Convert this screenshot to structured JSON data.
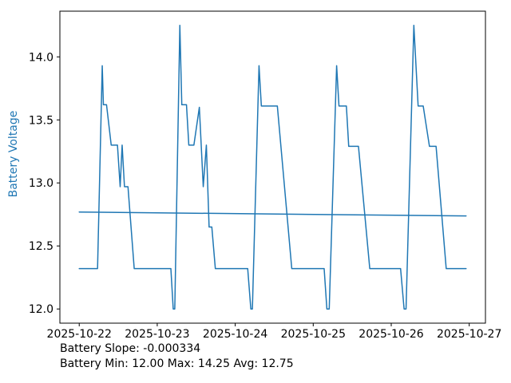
{
  "figure": {
    "background": "#ffffff",
    "axis_color": "#000000",
    "ylabel": "Battery Voltage",
    "ylabel_color": "#1f77b4",
    "annotation_line1": "Battery Slope: -0.000334",
    "annotation_line2": "Battery Min: 12.00 Max: 14.25 Avg: 12.75"
  },
  "chart_data": {
    "type": "line",
    "title": "",
    "xlabel": "",
    "ylabel": "Battery Voltage",
    "grid": false,
    "legend": "none",
    "line_color": "#1f77b4",
    "x_unit": "days since 2025-10-22 00:00",
    "xlim_days": [
      -0.248,
      5.208
    ],
    "ylim": [
      11.8875,
      14.3625
    ],
    "y_ticks": [
      12.0,
      12.5,
      13.0,
      13.5,
      14.0
    ],
    "x_ticks": [
      {
        "label": "2025-10-22",
        "day": 0
      },
      {
        "label": "2025-10-23",
        "day": 1
      },
      {
        "label": "2025-10-24",
        "day": 2
      },
      {
        "label": "2025-10-25",
        "day": 3
      },
      {
        "label": "2025-10-26",
        "day": 4
      },
      {
        "label": "2025-10-27",
        "day": 5
      }
    ],
    "stats": {
      "slope": -0.000334,
      "min": 12.0,
      "max": 14.25,
      "avg": 12.75
    },
    "series": [
      {
        "name": "battery_voltage",
        "color": "#1f77b4",
        "width": 1.5,
        "points": [
          [
            0.0,
            12.32
          ],
          [
            0.235,
            12.32
          ],
          [
            0.295,
            13.93
          ],
          [
            0.31,
            13.62
          ],
          [
            0.35,
            13.62
          ],
          [
            0.41,
            13.3
          ],
          [
            0.49,
            13.3
          ],
          [
            0.525,
            12.97
          ],
          [
            0.55,
            13.3
          ],
          [
            0.58,
            12.97
          ],
          [
            0.625,
            12.97
          ],
          [
            0.705,
            12.32
          ],
          [
            1.175,
            12.32
          ],
          [
            1.205,
            12.0
          ],
          [
            1.225,
            12.0
          ],
          [
            1.29,
            14.25
          ],
          [
            1.315,
            13.62
          ],
          [
            1.375,
            13.62
          ],
          [
            1.405,
            13.3
          ],
          [
            1.47,
            13.3
          ],
          [
            1.54,
            13.6
          ],
          [
            1.59,
            12.97
          ],
          [
            1.63,
            13.3
          ],
          [
            1.665,
            12.65
          ],
          [
            1.7,
            12.65
          ],
          [
            1.745,
            12.32
          ],
          [
            2.16,
            12.32
          ],
          [
            2.2,
            12.0
          ],
          [
            2.22,
            12.0
          ],
          [
            2.305,
            13.93
          ],
          [
            2.335,
            13.61
          ],
          [
            2.54,
            13.61
          ],
          [
            2.725,
            12.32
          ],
          [
            3.14,
            12.32
          ],
          [
            3.175,
            12.0
          ],
          [
            3.205,
            12.0
          ],
          [
            3.3,
            13.93
          ],
          [
            3.33,
            13.61
          ],
          [
            3.425,
            13.61
          ],
          [
            3.455,
            13.29
          ],
          [
            3.58,
            13.29
          ],
          [
            3.725,
            12.32
          ],
          [
            4.12,
            12.32
          ],
          [
            4.165,
            12.0
          ],
          [
            4.19,
            12.0
          ],
          [
            4.29,
            14.25
          ],
          [
            4.345,
            13.61
          ],
          [
            4.41,
            13.61
          ],
          [
            4.49,
            13.29
          ],
          [
            4.575,
            13.29
          ],
          [
            4.705,
            12.32
          ],
          [
            4.96,
            12.32
          ]
        ]
      },
      {
        "name": "battery_trend",
        "color": "#1f77b4",
        "width": 1.5,
        "points": [
          [
            0.0,
            12.769
          ],
          [
            4.96,
            12.738
          ]
        ]
      }
    ]
  }
}
